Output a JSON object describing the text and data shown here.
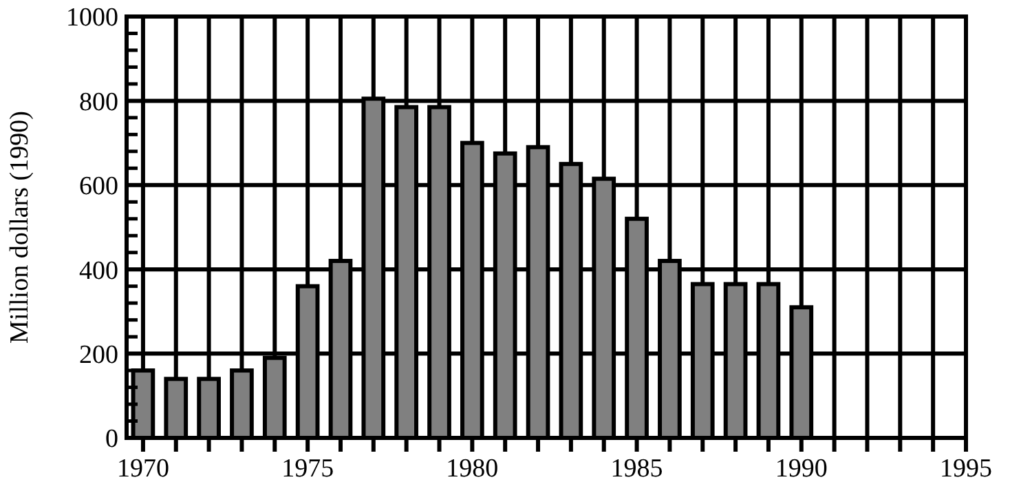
{
  "chart_data": {
    "type": "bar",
    "ylabel": "Million dollars (1990)",
    "x": [
      1970,
      1971,
      1972,
      1973,
      1974,
      1975,
      1976,
      1977,
      1978,
      1979,
      1980,
      1981,
      1982,
      1983,
      1984,
      1985,
      1986,
      1987,
      1988,
      1989,
      1990
    ],
    "values": [
      160,
      140,
      140,
      160,
      190,
      360,
      420,
      805,
      785,
      785,
      700,
      675,
      690,
      650,
      615,
      520,
      420,
      365,
      365,
      365,
      310
    ],
    "color": "#808080",
    "xlim": [
      1969.5,
      1995
    ],
    "xticks": [
      1970,
      {
        "value": 1971,
        "label": null
      },
      {
        "value": 1972,
        "label": null
      },
      {
        "value": 1973,
        "label": null
      },
      {
        "value": 1974,
        "label": null
      },
      1975,
      {
        "value": 1976,
        "label": null
      },
      {
        "value": 1977,
        "label": null
      },
      {
        "value": 1978,
        "label": null
      },
      {
        "value": 1979,
        "label": null
      },
      1980,
      {
        "value": 1981,
        "label": null
      },
      {
        "value": 1982,
        "label": null
      },
      {
        "value": 1983,
        "label": null
      },
      {
        "value": 1984,
        "label": null
      },
      1985,
      {
        "value": 1986,
        "label": null
      },
      {
        "value": 1987,
        "label": null
      },
      {
        "value": 1988,
        "label": null
      },
      {
        "value": 1989,
        "label": null
      },
      1990,
      {
        "value": 1991,
        "label": null
      },
      {
        "value": 1992,
        "label": null
      },
      {
        "value": 1993,
        "label": null
      },
      {
        "value": 1994,
        "label": null
      },
      1995
    ],
    "ylim": [
      0,
      1000
    ],
    "yticks": [
      0,
      {
        "value": 40,
        "label": null
      },
      {
        "value": 80,
        "label": null
      },
      {
        "value": 120,
        "label": null
      },
      {
        "value": 160,
        "label": null
      },
      200,
      {
        "value": 240,
        "label": null
      },
      {
        "value": 280,
        "label": null
      },
      {
        "value": 320,
        "label": null
      },
      {
        "value": 360,
        "label": null
      },
      400,
      {
        "value": 440,
        "label": null
      },
      {
        "value": 480,
        "label": null
      },
      {
        "value": 520,
        "label": null
      },
      {
        "value": 560,
        "label": null
      },
      600,
      {
        "value": 640,
        "label": null
      },
      {
        "value": 680,
        "label": null
      },
      {
        "value": 720,
        "label": null
      },
      {
        "value": 760,
        "label": null
      },
      800,
      {
        "value": 840,
        "label": null
      },
      {
        "value": 880,
        "label": null
      },
      {
        "value": 920,
        "label": null
      },
      {
        "value": 960,
        "label": null
      },
      1000
    ],
    "grid": true
  }
}
